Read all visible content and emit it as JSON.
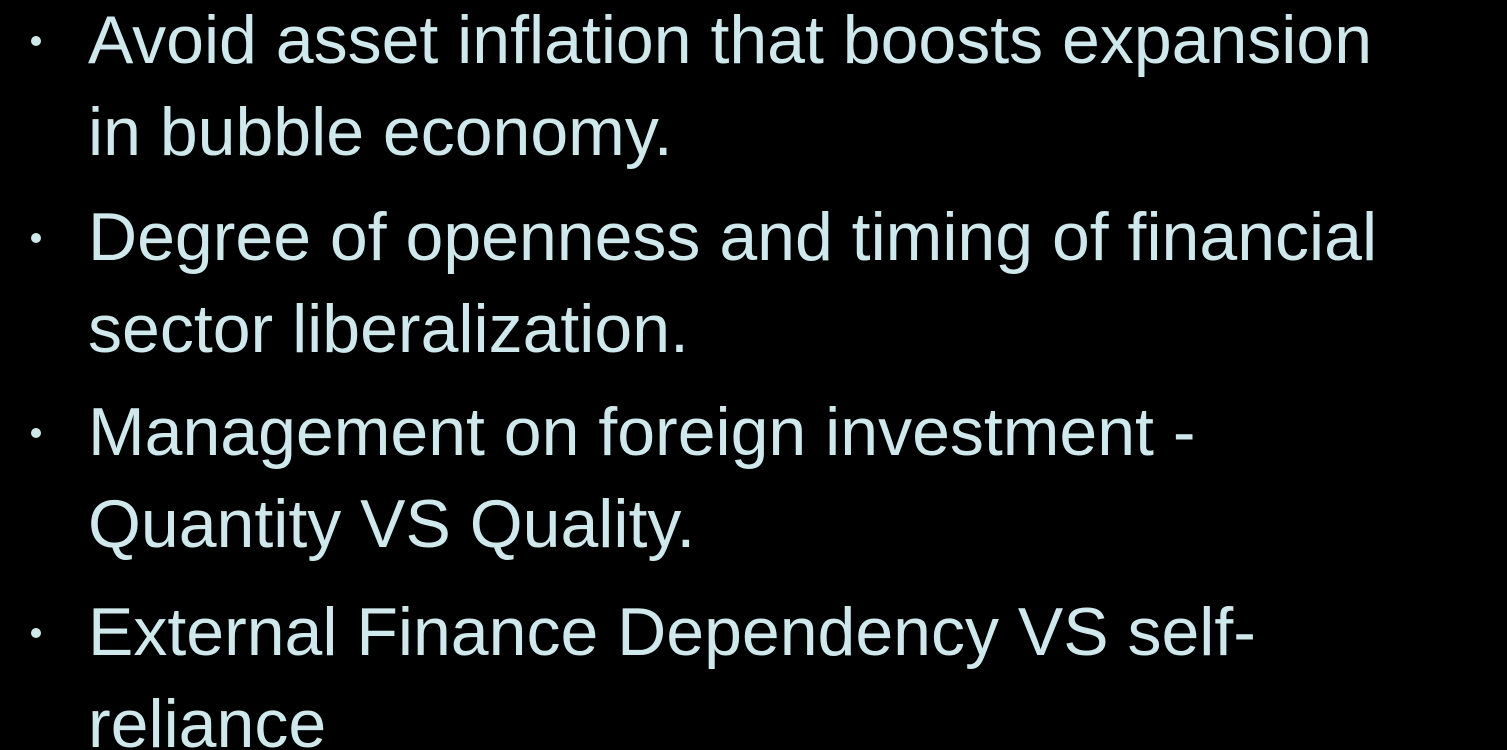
{
  "bullets": [
    {
      "lines": [
        "Avoid asset inflation that boosts expansion",
        "in bubble economy."
      ]
    },
    {
      "lines": [
        "Degree of openness and timing of financial",
        "sector liberalization."
      ]
    },
    {
      "lines": [
        "Management on foreign investment -",
        "Quantity VS Quality."
      ]
    },
    {
      "lines": [
        "External Finance Dependency VS self-",
        "reliance"
      ]
    }
  ]
}
